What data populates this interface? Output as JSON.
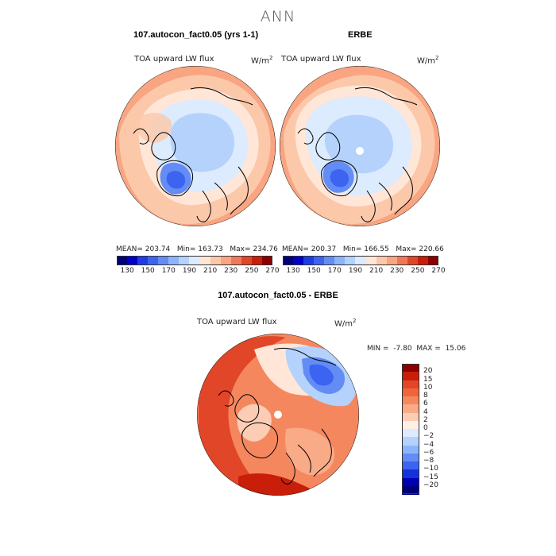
{
  "figure_title": "ANN",
  "panels": [
    {
      "title": "107.autocon_fact0.05 (yrs 1-1)",
      "variable": "TOA upward LW flux",
      "units": "W/m",
      "units_sup": "2",
      "stats": {
        "mean_label": "MEAN=",
        "mean": "203.74",
        "min_label": "Min=",
        "min": "163.73",
        "max_label": "Max=",
        "max": "234.76"
      }
    },
    {
      "title": "ERBE",
      "variable": "TOA upward LW flux",
      "units": "W/m",
      "units_sup": "2",
      "stats": {
        "mean_label": "MEAN=",
        "mean": "200.37",
        "min_label": "Min=",
        "min": "166.55",
        "max_label": "Max=",
        "max": "220.66"
      }
    }
  ],
  "diff_panel": {
    "title": "107.autocon_fact0.05 - ERBE",
    "variable": "TOA upward LW flux",
    "units": "W/m",
    "units_sup": "2",
    "minmax": {
      "min_label": "MIN =",
      "min": "-7.80",
      "max_label": "MAX =",
      "max": "15.06"
    }
  },
  "chart_data": [
    {
      "type": "heatmap",
      "projection": "north polar stereographic",
      "title": "107.autocon_fact0.05 (yrs 1-1)",
      "variable": "TOA upward LW flux",
      "units": "W/m2",
      "mean": 203.74,
      "min": 163.73,
      "max": 234.76,
      "colorbar_levels": [
        130,
        140,
        150,
        160,
        170,
        180,
        190,
        200,
        210,
        220,
        230,
        240,
        250,
        260,
        270
      ],
      "colorbar_tick_labels": [
        "130",
        "150",
        "170",
        "190",
        "210",
        "230",
        "250",
        "270"
      ],
      "colors": [
        "#00007a",
        "#0000c8",
        "#1e3ce6",
        "#3c64f0",
        "#648cf5",
        "#8cb4fa",
        "#b4d2fc",
        "#dcebfe",
        "#ffe6d7",
        "#fcc8aa",
        "#f9a582",
        "#f0785a",
        "#e14628",
        "#c81e0a",
        "#8c0000"
      ]
    },
    {
      "type": "heatmap",
      "projection": "north polar stereographic",
      "title": "ERBE",
      "variable": "TOA upward LW flux",
      "units": "W/m2",
      "mean": 200.37,
      "min": 166.55,
      "max": 220.66,
      "colorbar_levels": [
        130,
        140,
        150,
        160,
        170,
        180,
        190,
        200,
        210,
        220,
        230,
        240,
        250,
        260,
        270
      ],
      "colorbar_tick_labels": [
        "130",
        "150",
        "170",
        "190",
        "210",
        "230",
        "250",
        "270"
      ],
      "colors": [
        "#00007a",
        "#0000c8",
        "#1e3ce6",
        "#3c64f0",
        "#648cf5",
        "#8cb4fa",
        "#b4d2fc",
        "#dcebfe",
        "#ffe6d7",
        "#fcc8aa",
        "#f9a582",
        "#f0785a",
        "#e14628",
        "#c81e0a",
        "#8c0000"
      ]
    },
    {
      "type": "heatmap",
      "projection": "north polar stereographic",
      "title": "107.autocon_fact0.05 - ERBE",
      "variable": "TOA upward LW flux",
      "units": "W/m2",
      "min": -7.8,
      "max": 15.06,
      "colorbar_levels": [
        20,
        15,
        10,
        8,
        6,
        4,
        2,
        0,
        -2,
        -4,
        -6,
        -8,
        -10,
        -15,
        -20
      ],
      "colorbar_tick_labels": [
        "20",
        "15",
        "10",
        "8",
        "6",
        "4",
        "2",
        "0",
        "−2",
        "−4",
        "−6",
        "−8",
        "−10",
        "−15",
        "−20"
      ],
      "colors": [
        "#8c0000",
        "#c81e0a",
        "#e14628",
        "#f0643c",
        "#f5875f",
        "#f9aa87",
        "#fccdb4",
        "#fff0e6",
        "#dcebfe",
        "#b4d2fc",
        "#8cb4fa",
        "#648cf5",
        "#3c64f0",
        "#1432dc",
        "#0000b4",
        "#00007a"
      ]
    }
  ]
}
